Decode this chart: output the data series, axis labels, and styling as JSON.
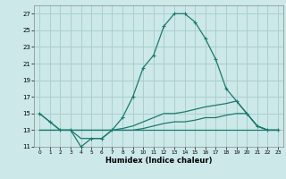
{
  "xlabel": "Humidex (Indice chaleur)",
  "bg_color": "#cce8e8",
  "grid_color": "#aacfcf",
  "line_color": "#1a7a6e",
  "xlim": [
    -0.5,
    23.5
  ],
  "ylim": [
    11,
    28
  ],
  "xticks": [
    0,
    1,
    2,
    3,
    4,
    5,
    6,
    7,
    8,
    9,
    10,
    11,
    12,
    13,
    14,
    15,
    16,
    17,
    18,
    19,
    20,
    21,
    22,
    23
  ],
  "yticks": [
    11,
    13,
    15,
    17,
    19,
    21,
    23,
    25,
    27
  ],
  "line1_x": [
    0,
    1,
    2,
    3,
    4,
    5,
    6,
    7,
    8,
    9,
    10,
    11,
    12,
    13,
    14,
    15,
    16,
    17,
    18,
    19,
    20,
    21,
    22,
    23
  ],
  "line1_y": [
    15,
    14,
    13,
    13,
    11,
    12,
    12,
    13,
    14.5,
    17,
    20.5,
    22,
    25.5,
    27,
    27,
    26,
    24,
    21.5,
    18,
    16.5,
    15,
    13.5,
    13,
    13
  ],
  "line2_x": [
    0,
    1,
    2,
    3,
    4,
    5,
    6,
    7,
    8,
    9,
    10,
    11,
    12,
    13,
    14,
    15,
    16,
    17,
    18,
    19,
    20,
    21,
    22,
    23
  ],
  "line2_y": [
    15,
    14,
    13,
    13,
    12,
    12,
    12,
    13,
    13.2,
    13.5,
    14,
    14.5,
    15,
    15,
    15.2,
    15.5,
    15.8,
    16,
    16.2,
    16.5,
    15,
    13.5,
    13,
    13
  ],
  "line3_x": [
    0,
    1,
    2,
    3,
    4,
    5,
    6,
    7,
    8,
    9,
    10,
    11,
    12,
    13,
    14,
    15,
    16,
    17,
    18,
    19,
    20,
    21,
    22,
    23
  ],
  "line3_y": [
    13,
    13,
    13,
    13,
    13,
    13,
    13,
    13,
    13,
    13,
    13.2,
    13.5,
    13.8,
    14,
    14,
    14.2,
    14.5,
    14.5,
    14.8,
    15,
    15,
    13.5,
    13,
    13
  ],
  "line4_x": [
    0,
    1,
    2,
    3,
    4,
    5,
    6,
    7,
    8,
    9,
    10,
    11,
    12,
    13,
    14,
    15,
    16,
    17,
    18,
    19,
    20,
    21,
    22,
    23
  ],
  "line4_y": [
    13,
    13,
    13,
    13,
    13,
    13,
    13,
    13,
    13,
    13,
    13,
    13,
    13,
    13,
    13,
    13,
    13,
    13,
    13,
    13,
    13,
    13,
    13,
    13
  ]
}
